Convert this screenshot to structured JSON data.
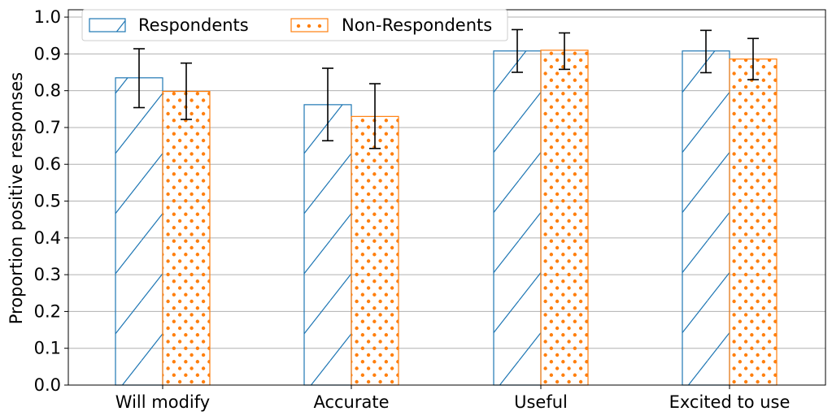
{
  "chart_data": {
    "type": "bar",
    "categories": [
      "Will modify",
      "Accurate",
      "Useful",
      "Excited to use"
    ],
    "series": [
      {
        "name": "Respondents",
        "values": [
          0.835,
          0.762,
          0.908,
          0.908
        ],
        "error_low": [
          0.754,
          0.664,
          0.85,
          0.849
        ],
        "error_high": [
          0.914,
          0.861,
          0.966,
          0.964
        ],
        "color": "#1f77b4",
        "pattern": "diagonal-hatch"
      },
      {
        "name": "Non-Respondents",
        "values": [
          0.798,
          0.73,
          0.91,
          0.886
        ],
        "error_low": [
          0.722,
          0.643,
          0.858,
          0.83
        ],
        "error_high": [
          0.875,
          0.819,
          0.957,
          0.942
        ],
        "color": "#ff7f0e",
        "pattern": "dots"
      }
    ],
    "title": "",
    "xlabel": "",
    "ylabel": "Proportion positive responses",
    "ylim": [
      0,
      1.02
    ],
    "yticks": [
      "0.0",
      "0.1",
      "0.2",
      "0.3",
      "0.4",
      "0.5",
      "0.6",
      "0.7",
      "0.8",
      "0.9",
      "1.0"
    ],
    "grid": "horizontal",
    "legend_position": "top-left"
  }
}
